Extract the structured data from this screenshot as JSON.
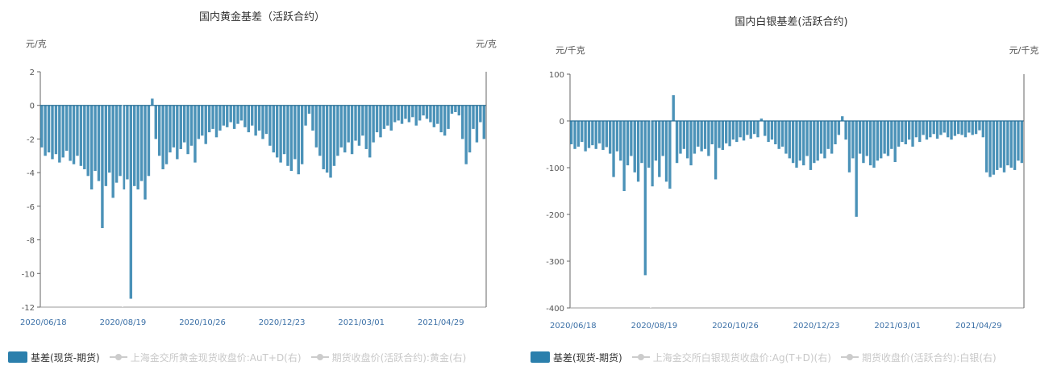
{
  "chart_data": [
    {
      "type": "bar",
      "title": "国内黄金基差（活跃合约）",
      "y_unit_left": "元/克",
      "y_unit_right": "元/克",
      "ylim": [
        -12,
        2
      ],
      "yticks": [
        2,
        0,
        -2,
        -4,
        -6,
        -8,
        -10,
        -12
      ],
      "x_ticks": [
        "2020/06/18",
        "2020/08/19",
        "2020/10/26",
        "2020/12/23",
        "2021/03/01",
        "2021/04/29"
      ],
      "color": "#2b7fac",
      "legend": [
        {
          "label": "基差(现货-期货)",
          "active": true
        },
        {
          "label": "上海金交所黄金现货收盘价:AuT+D(右)",
          "active": false
        },
        {
          "label": "期货收盘价(活跃合约):黄金(右)",
          "active": false
        }
      ],
      "series": [
        {
          "name": "基差(现货-期货)",
          "values": [
            -2.5,
            -3.0,
            -2.8,
            -3.2,
            -2.9,
            -3.4,
            -3.1,
            -2.7,
            -3.3,
            -3.5,
            -3.0,
            -3.6,
            -3.8,
            -4.2,
            -5.0,
            -3.9,
            -4.5,
            -7.3,
            -4.8,
            -4.0,
            -5.5,
            -4.6,
            -4.2,
            -5.0,
            -4.4,
            -11.5,
            -4.8,
            -5.0,
            -4.5,
            -5.6,
            -4.2,
            0.4,
            -2.0,
            -3.0,
            -3.8,
            -3.5,
            -2.8,
            -2.5,
            -3.2,
            -2.6,
            -2.2,
            -2.9,
            -2.4,
            -3.4,
            -2.0,
            -1.8,
            -2.3,
            -1.6,
            -1.4,
            -1.9,
            -1.5,
            -1.2,
            -1.3,
            -1.0,
            -1.4,
            -1.1,
            -0.9,
            -1.3,
            -1.6,
            -1.2,
            -1.8,
            -1.5,
            -2.0,
            -1.7,
            -2.4,
            -2.8,
            -3.1,
            -3.4,
            -2.9,
            -3.6,
            -3.9,
            -3.2,
            -4.1,
            -3.5,
            -1.2,
            -0.5,
            -1.5,
            -2.5,
            -3.0,
            -3.8,
            -4.0,
            -4.3,
            -3.6,
            -3.0,
            -2.5,
            -2.8,
            -2.2,
            -2.9,
            -2.1,
            -2.4,
            -1.8,
            -2.6,
            -3.1,
            -2.2,
            -1.6,
            -1.9,
            -1.4,
            -1.2,
            -1.5,
            -1.0,
            -0.9,
            -1.1,
            -0.8,
            -1.0,
            -0.7,
            -1.2,
            -0.9,
            -0.6,
            -0.8,
            -1.0,
            -1.3,
            -1.1,
            -1.6,
            -1.8,
            -1.4,
            -0.5,
            -0.4,
            -0.6,
            -2.0,
            -3.5,
            -2.8,
            -1.4,
            -2.2,
            -1.0,
            -2.0
          ]
        }
      ]
    },
    {
      "type": "bar",
      "title": "国内白银基差(活跃合约)",
      "y_unit_left": "元/千克",
      "y_unit_right": "元/千克",
      "ylim": [
        -400,
        100
      ],
      "yticks": [
        100,
        0,
        -100,
        -200,
        -300,
        -400
      ],
      "x_ticks": [
        "2020/06/18",
        "2020/08/19",
        "2020/10/26",
        "2020/12/23",
        "2021/03/01",
        "2021/04/29"
      ],
      "color": "#2b7fac",
      "legend": [
        {
          "label": "基差(现货-期货)",
          "active": true
        },
        {
          "label": "上海金交所白银现货收盘价:Ag(T+D)(右)",
          "active": false
        },
        {
          "label": "期货收盘价(活跃合约):白银(右)",
          "active": false
        }
      ],
      "series": [
        {
          "name": "基差(现货-期货)",
          "values": [
            -50,
            -60,
            -55,
            -45,
            -65,
            -58,
            -52,
            -60,
            -48,
            -62,
            -56,
            -70,
            -120,
            -65,
            -85,
            -150,
            -95,
            -75,
            -110,
            -130,
            -90,
            -330,
            -100,
            -140,
            -85,
            -120,
            -75,
            -130,
            -145,
            55,
            -90,
            -70,
            -60,
            -80,
            -95,
            -70,
            -55,
            -65,
            -60,
            -75,
            -50,
            -125,
            -58,
            -62,
            -48,
            -54,
            -40,
            -45,
            -35,
            -42,
            -30,
            -38,
            -28,
            -35,
            5,
            -32,
            -45,
            -40,
            -50,
            -60,
            -55,
            -70,
            -80,
            -90,
            -100,
            -85,
            -95,
            -75,
            -105,
            -90,
            -85,
            -70,
            -80,
            -60,
            -70,
            -50,
            -30,
            10,
            -40,
            -110,
            -80,
            -205,
            -70,
            -90,
            -75,
            -95,
            -100,
            -85,
            -80,
            -70,
            -75,
            -60,
            -88,
            -55,
            -45,
            -50,
            -40,
            -55,
            -35,
            -45,
            -30,
            -40,
            -35,
            -28,
            -38,
            -30,
            -25,
            -35,
            -40,
            -32,
            -28,
            -30,
            -35,
            -25,
            -30,
            -28,
            -20,
            -35,
            -110,
            -120,
            -115,
            -105,
            -100,
            -110,
            -95,
            -100,
            -105,
            -85,
            -90
          ]
        }
      ]
    }
  ]
}
